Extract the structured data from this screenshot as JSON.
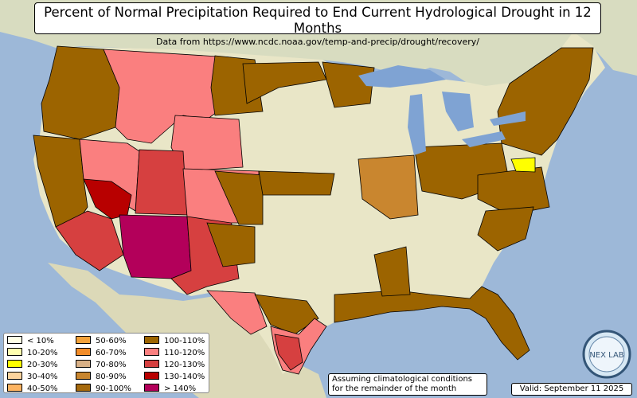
{
  "title": "Percent of Normal Precipitation Required to End Current Hydrological Drought in 12 Months",
  "subtitle": "Data from https://www.ncdc.noaa.gov/temp-and-precip/drought/recovery/",
  "note_line1": "Assuming climatological conditions",
  "note_line2": "for the remainder of the month",
  "valid": "Valid: September 11 2025",
  "logo_text": "NEX LAB",
  "colors": {
    "ocean": "#9db8d8",
    "land": "#e9e6c7",
    "lake": "#7fa3d3"
  },
  "legend": [
    {
      "label": "< 10%",
      "color": "#ffffe6"
    },
    {
      "label": "10-20%",
      "color": "#ffffb0"
    },
    {
      "label": "20-30%",
      "color": "#ffff00"
    },
    {
      "label": "30-40%",
      "color": "#fdd49e"
    },
    {
      "label": "40-50%",
      "color": "#fdb462"
    },
    {
      "label": "50-60%",
      "color": "#f4a23a"
    },
    {
      "label": "60-70%",
      "color": "#f28c28"
    },
    {
      "label": "70-80%",
      "color": "#d8b086"
    },
    {
      "label": "80-90%",
      "color": "#c9862f"
    },
    {
      "label": "90-100%",
      "color": "#a5690c"
    },
    {
      "label": "100-110%",
      "color": "#9c6400"
    },
    {
      "label": "110-120%",
      "color": "#fa7f7f"
    },
    {
      "label": "120-130%",
      "color": "#d64040"
    },
    {
      "label": "130-140%",
      "color": "#b80000"
    },
    {
      "label": "> 140%",
      "color": "#b3005a"
    }
  ]
}
